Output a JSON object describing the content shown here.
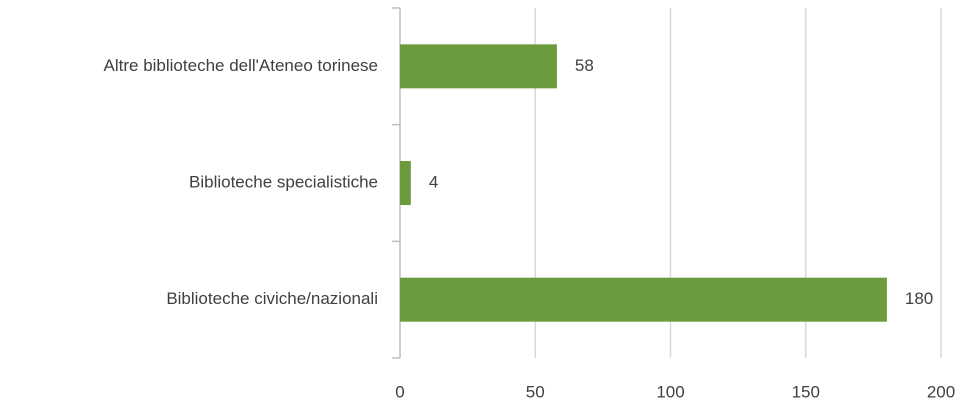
{
  "chart_data": {
    "type": "bar",
    "orientation": "horizontal",
    "categories": [
      "Altre biblioteche dell'Ateneo torinese",
      "Biblioteche specialistiche",
      "Biblioteche civiche/nazionali"
    ],
    "values": [
      58,
      4,
      180
    ],
    "color": "#6b9b3d",
    "xlim": [
      0,
      200
    ],
    "xticks": [
      0,
      50,
      100,
      150,
      200
    ],
    "grid": true,
    "data_labels": true
  }
}
